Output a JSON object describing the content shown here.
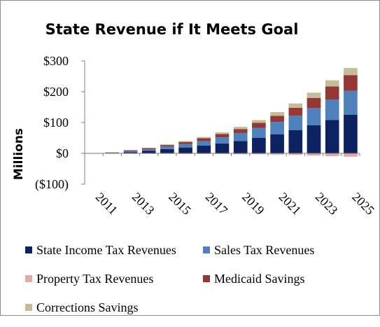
{
  "chart_data": {
    "type": "bar",
    "stacked": true,
    "title": "State Revenue if It Meets Goal",
    "ylabel": "Millions",
    "xlabel": "",
    "ylim": [
      -100,
      300
    ],
    "yticks": [
      {
        "value": 300,
        "label": "$300"
      },
      {
        "value": 200,
        "label": "$200"
      },
      {
        "value": 100,
        "label": "$100"
      },
      {
        "value": 0,
        "label": "$0"
      },
      {
        "value": -100,
        "label": "($100)"
      }
    ],
    "categories": [
      "2011",
      "2012",
      "2013",
      "2014",
      "2015",
      "2016",
      "2017",
      "2018",
      "2019",
      "2020",
      "2021",
      "2022",
      "2023",
      "2024",
      "2025"
    ],
    "xtick_labels": [
      "2011",
      "",
      "2013",
      "",
      "2015",
      "",
      "2017",
      "",
      "2019",
      "",
      "2021",
      "",
      "2023",
      "",
      "2025"
    ],
    "series": [
      {
        "name": "State Income Tax Revenues",
        "color": "#0d2260",
        "values": [
          0,
          1,
          4,
          8,
          14,
          19,
          25,
          32,
          40,
          50,
          62,
          75,
          91,
          108,
          125
        ]
      },
      {
        "name": "Sales Tax Revenues",
        "color": "#4f81bd",
        "values": [
          0,
          1,
          3,
          5,
          8,
          11,
          15,
          20,
          26,
          33,
          40,
          47,
          56,
          67,
          78
        ]
      },
      {
        "name": "Property Tax Revenues",
        "color": "#e6a7a6",
        "values": [
          -1,
          -1,
          -1,
          -1,
          -1,
          -2,
          -2,
          -2,
          -3,
          -3,
          -4,
          -5,
          -7,
          -9,
          -11
        ]
      },
      {
        "name": "Medicaid Savings",
        "color": "#953735",
        "values": [
          0,
          1,
          3,
          4,
          5,
          7,
          9,
          11,
          13,
          16,
          20,
          26,
          33,
          42,
          51
        ]
      },
      {
        "name": "Corrections Savings",
        "color": "#c4bd97",
        "values": [
          0,
          1,
          1,
          1,
          2,
          3,
          4,
          5,
          7,
          9,
          12,
          14,
          17,
          20,
          23
        ]
      }
    ],
    "grid": false,
    "legend_position": "bottom"
  }
}
